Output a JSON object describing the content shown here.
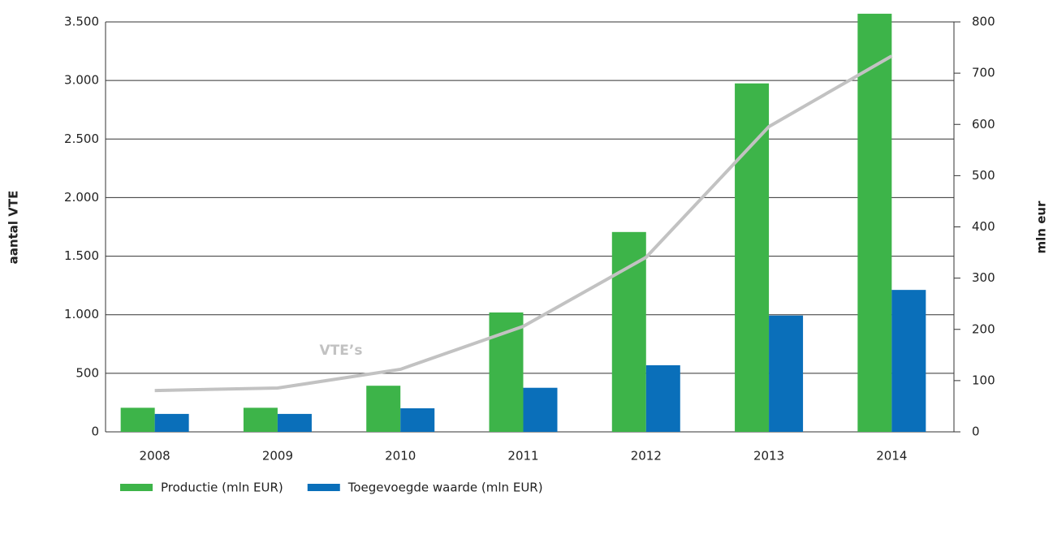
{
  "chart_data": {
    "type": "bar",
    "y_label": "aantal VTE",
    "y2_label": "mln eur",
    "annotation": "VTE’s",
    "categories": [
      "2008",
      "2009",
      "2010",
      "2011",
      "2012",
      "2013",
      "2014"
    ],
    "series": [
      {
        "name": "Productie (mln EUR)",
        "color": "#3db449",
        "axis": "y2",
        "type": "bar",
        "values": [
          47,
          47,
          90,
          233,
          390,
          680,
          816
        ]
      },
      {
        "name": "Toegevoegde waarde (mln EUR)",
        "color": "#0a6fba",
        "axis": "y2",
        "type": "bar",
        "values": [
          35,
          35,
          46,
          86,
          130,
          227,
          277
        ]
      },
      {
        "name": "VTE’s",
        "color": "#c2c2c2",
        "axis": "y",
        "type": "line",
        "values": [
          353,
          374,
          534,
          901,
          1490,
          2606,
          3209
        ]
      }
    ],
    "ylim": [
      0,
      3500
    ],
    "yticks": [
      0,
      500,
      {
        "value": 1000,
        "label": "1.000"
      },
      {
        "value": 1500,
        "label": "1.500"
      },
      {
        "value": 2000,
        "label": "2.000"
      },
      {
        "value": 2500,
        "label": "2.500"
      },
      {
        "value": 3000,
        "label": "3.000"
      },
      {
        "value": 3500,
        "label": "3.500"
      }
    ],
    "y2lim": [
      0,
      800
    ],
    "y2ticks": [
      0,
      100,
      200,
      300,
      400,
      500,
      600,
      700,
      800
    ],
    "grid": true
  }
}
